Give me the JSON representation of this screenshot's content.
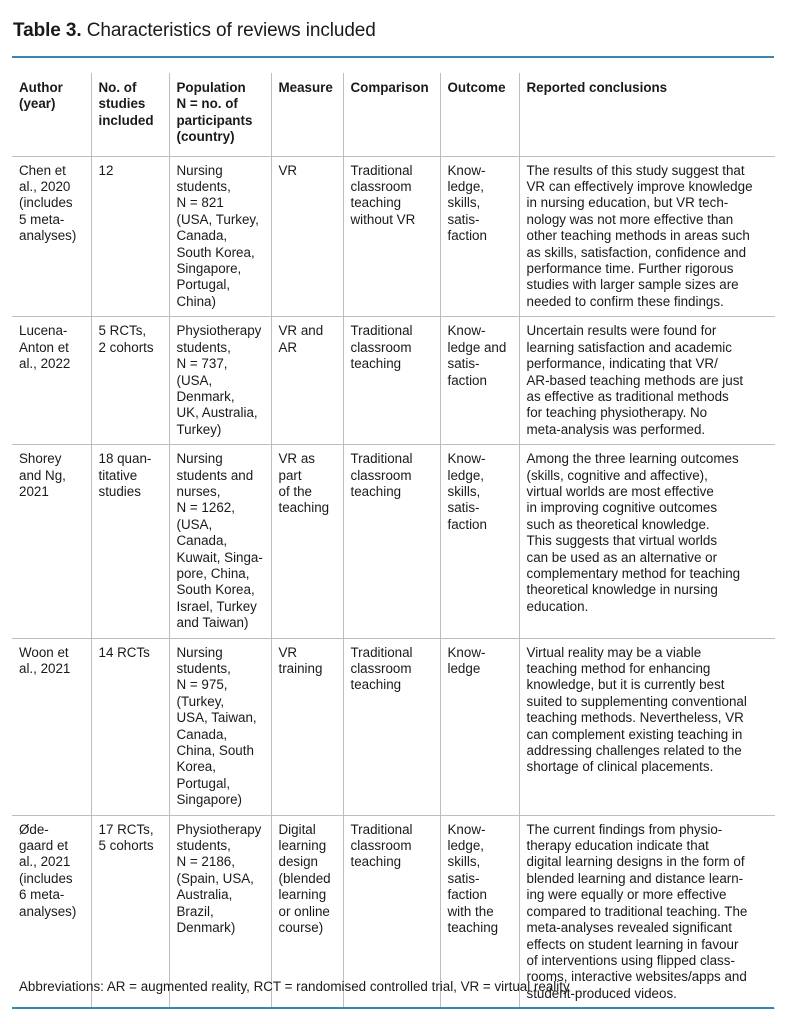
{
  "title": {
    "label": "Table 3.",
    "text": "Characteristics of reviews included"
  },
  "colors": {
    "accent_rule": "#3a86a8",
    "grid": "#bdbdbd"
  },
  "table": {
    "headers": [
      "Author\n(year)",
      "No. of\nstudies\nincluded",
      "Population\nN = no. of\nparticipants\n(country)",
      "Measure",
      "Comparison",
      "Outcome",
      "Reported conclusions"
    ],
    "rows": [
      [
        "Chen et\nal., 2020\n(includes\n5 meta-\nanalyses)",
        "12",
        "Nursing\nstudents,\nN = 821\n(USA, Turkey,\nCanada,\nSouth Korea,\nSingapore,\nPortugal,\nChina)",
        "VR",
        "Traditional\nclassroom\nteaching\nwithout VR",
        "Know-\nledge,\nskills,\nsatis-\nfaction",
        "The results of this study suggest that\nVR can effectively improve knowledge\nin nursing education, but VR tech-\nnology was not more effective than\nother teaching methods in areas such\nas skills, satisfaction, confidence and\nperformance time. Further rigorous\nstudies with larger sample sizes are\nneeded to confirm these findings."
      ],
      [
        "Lucena-\nAnton et\nal., 2022",
        "5 RCTs,\n2 cohorts",
        "Physiotherapy\nstudents,\nN = 737,\n(USA,\nDenmark,\nUK, Australia,\nTurkey)",
        "VR and\nAR",
        "Traditional\nclassroom\nteaching",
        "Know-\nledge and\nsatis-\nfaction",
        "Uncertain results were found for\nlearning satisfaction and academic\nperformance, indicating that VR/\nAR-based teaching methods are just\nas effective as traditional methods\nfor teaching physiotherapy. No\nmeta-analysis was performed."
      ],
      [
        "Shorey\nand Ng,\n2021",
        "18 quan-\ntitative\nstudies",
        "Nursing\nstudents and\nnurses,\nN = 1262,\n(USA, Canada,\nKuwait, Singa-\npore, China,\nSouth Korea,\nIsrael, Turkey\nand Taiwan)",
        "VR as\npart\nof the\nteaching",
        "Traditional\nclassroom\nteaching",
        "Know-\nledge,\nskills,\nsatis-\nfaction",
        "Among the three learning outcomes\n(skills, cognitive and affective),\nvirtual worlds are most effective\nin improving cognitive outcomes\nsuch as theoretical knowledge.\nThis suggests that virtual worlds\ncan be used as an alternative or\ncomplementary method for teaching\ntheoretical knowledge in nursing\neducation."
      ],
      [
        "Woon et\nal., 2021",
        "14 RCTs",
        "Nursing\nstudents,\nN = 975,\n(Turkey,\nUSA, Taiwan,\nCanada,\nChina, South\nKorea,\nPortugal,\nSingapore)",
        "VR\ntraining",
        "Traditional\nclassroom\nteaching",
        "Know-\nledge",
        "Virtual reality may be a viable\nteaching method for enhancing\nknowledge, but it is currently best\nsuited to supplementing conventional\nteaching methods. Nevertheless, VR\ncan complement existing teaching in\naddressing challenges related to the\nshortage of clinical placements."
      ],
      [
        "Øde-\ngaard et\nal., 2021\n(includes\n6 meta-\nanalyses)",
        "17 RCTs,\n5 cohorts",
        "Physiotherapy\nstudents,\nN = 2186,\n(Spain, USA,\nAustralia,\nBrazil,\nDenmark)",
        "Digital\nlearning\ndesign\n(blended\nlearning\nor online\ncourse)",
        "Traditional\nclassroom\nteaching",
        "Know-\nledge,\nskills,\nsatis-\nfaction\nwith the\nteaching",
        "The current findings from physio-\ntherapy education indicate that\ndigital learning designs in the form of\nblended learning and distance learn-\ning were equally or more effective\ncompared to traditional teaching. The\nmeta-analyses revealed significant\neffects on student learning in favour\nof interventions using flipped class-\nrooms, interactive websites/apps and\nstudent-produced videos."
      ]
    ]
  },
  "footnote": "Abbreviations: AR = augmented reality, RCT = randomised controlled trial, VR = virtual reality"
}
